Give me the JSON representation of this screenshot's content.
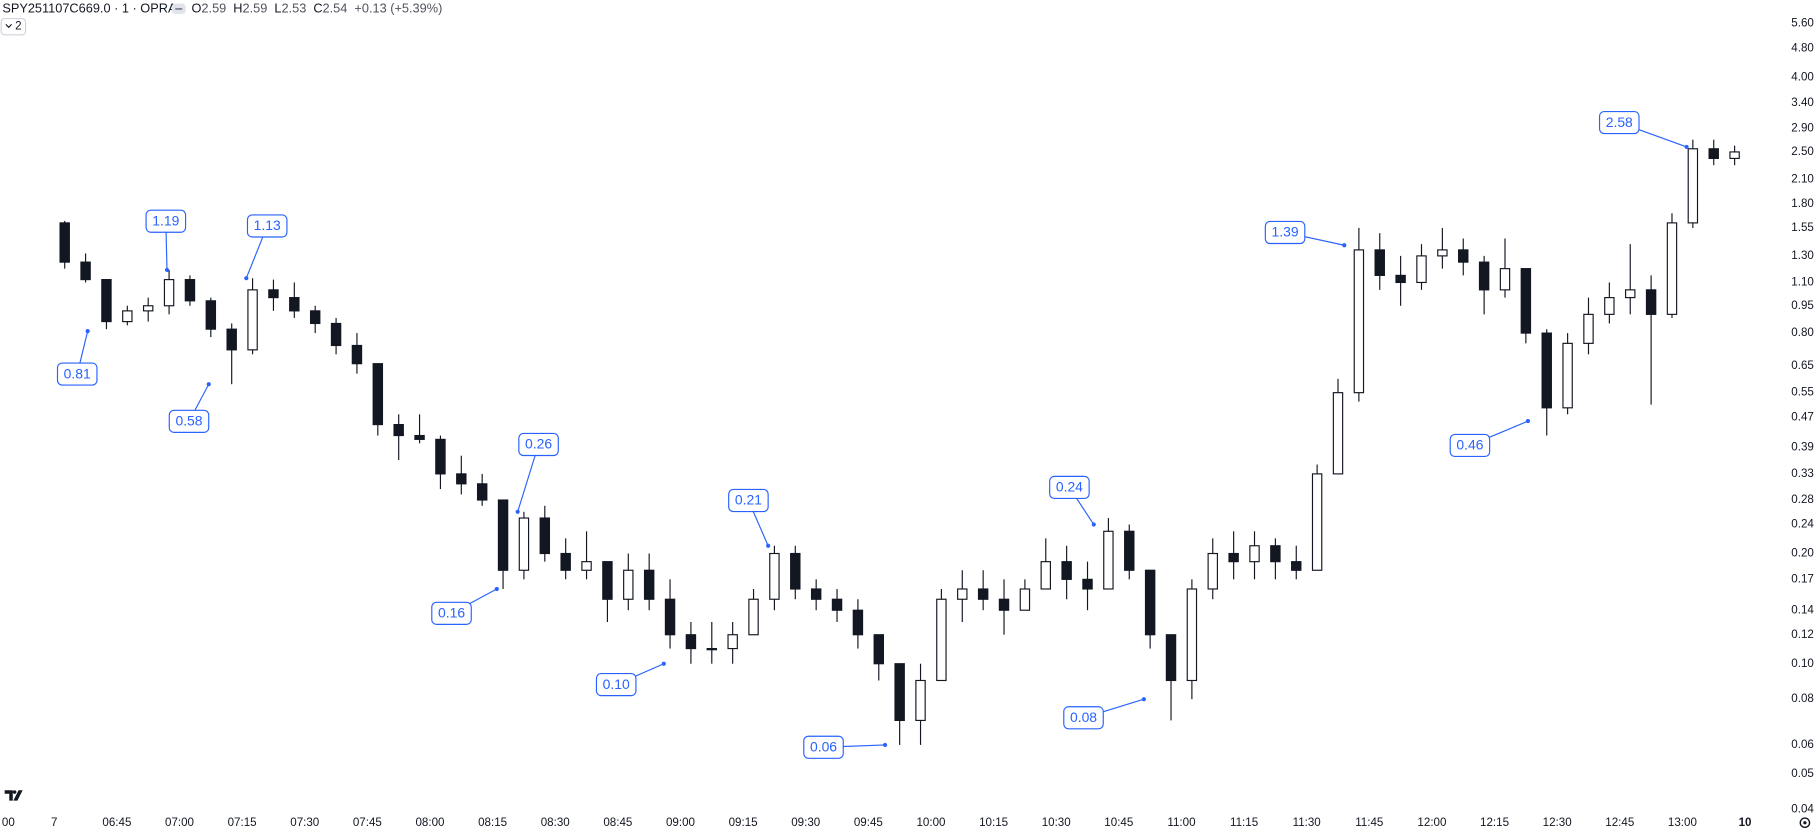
{
  "header": {
    "symbol": "SPY251107C669.0 · 1 · OPRA",
    "ohlc": [
      {
        "key": "O",
        "value": "2.59"
      },
      {
        "key": "H",
        "value": "2.59"
      },
      {
        "key": "L",
        "value": "2.53"
      },
      {
        "key": "C",
        "value": "2.54"
      }
    ],
    "change": "+0.13 (+5.39%)",
    "indicator_count": "2"
  },
  "chart_data": {
    "type": "candlestick",
    "scale": "log",
    "grid": false,
    "color_up": "#ffffff",
    "color_down": "#131722",
    "color_edge": "#131722",
    "x": [
      "06:30",
      "06:35",
      "06:40",
      "06:45",
      "06:50",
      "06:55",
      "07:00",
      "07:05",
      "07:10",
      "07:15",
      "07:20",
      "07:25",
      "07:30",
      "07:35",
      "07:40",
      "07:45",
      "07:50",
      "07:55",
      "08:00",
      "08:05",
      "08:10",
      "08:15",
      "08:20",
      "08:25",
      "08:30",
      "08:35",
      "08:40",
      "08:45",
      "08:50",
      "08:55",
      "09:00",
      "09:05",
      "09:10",
      "09:15",
      "09:20",
      "09:25",
      "09:30",
      "09:35",
      "09:40",
      "09:45",
      "09:50",
      "09:55",
      "10:00",
      "10:05",
      "10:10",
      "10:15",
      "10:20",
      "10:25",
      "10:30",
      "10:35",
      "10:40",
      "10:45",
      "10:50",
      "10:55",
      "11:00",
      "11:05",
      "11:10",
      "11:15",
      "11:20",
      "11:25",
      "11:30",
      "11:35",
      "11:40",
      "11:45",
      "11:50",
      "11:55",
      "12:00",
      "12:05",
      "12:10",
      "12:15",
      "12:20",
      "12:25",
      "12:30",
      "12:35",
      "12:40",
      "12:45",
      "12:50",
      "12:55",
      "13:00",
      "13:05",
      "13:10"
    ],
    "open": [
      1.6,
      1.25,
      1.12,
      0.86,
      0.92,
      0.95,
      1.12,
      0.98,
      0.82,
      0.72,
      1.05,
      1.0,
      0.92,
      0.85,
      0.74,
      0.66,
      0.45,
      0.42,
      0.41,
      0.33,
      0.31,
      0.28,
      0.18,
      0.25,
      0.2,
      0.18,
      0.19,
      0.15,
      0.18,
      0.15,
      0.12,
      0.11,
      0.11,
      0.12,
      0.15,
      0.2,
      0.16,
      0.15,
      0.14,
      0.12,
      0.1,
      0.07,
      0.09,
      0.15,
      0.16,
      0.15,
      0.14,
      0.16,
      0.19,
      0.17,
      0.16,
      0.23,
      0.18,
      0.12,
      0.09,
      0.16,
      0.2,
      0.19,
      0.21,
      0.19,
      0.18,
      0.33,
      0.55,
      1.35,
      1.15,
      1.1,
      1.3,
      1.35,
      1.25,
      1.05,
      1.2,
      0.8,
      0.5,
      0.75,
      0.9,
      1.0,
      1.05,
      0.9,
      1.6,
      2.55,
      2.4
    ],
    "high": [
      1.62,
      1.32,
      1.12,
      0.95,
      1.0,
      1.19,
      1.15,
      1.0,
      0.85,
      1.13,
      1.12,
      1.1,
      0.95,
      0.88,
      0.8,
      0.66,
      0.48,
      0.48,
      0.42,
      0.37,
      0.33,
      0.28,
      0.26,
      0.27,
      0.22,
      0.23,
      0.19,
      0.2,
      0.2,
      0.17,
      0.13,
      0.13,
      0.13,
      0.16,
      0.21,
      0.21,
      0.17,
      0.16,
      0.15,
      0.12,
      0.1,
      0.1,
      0.16,
      0.18,
      0.18,
      0.17,
      0.17,
      0.22,
      0.21,
      0.19,
      0.25,
      0.24,
      0.18,
      0.12,
      0.17,
      0.22,
      0.23,
      0.23,
      0.22,
      0.21,
      0.35,
      0.6,
      1.55,
      1.5,
      1.3,
      1.4,
      1.55,
      1.45,
      1.3,
      1.45,
      1.2,
      0.82,
      0.8,
      1.0,
      1.1,
      1.4,
      1.15,
      1.7,
      2.7,
      2.7,
      2.6
    ],
    "low": [
      1.2,
      1.1,
      0.82,
      0.84,
      0.86,
      0.9,
      0.95,
      0.78,
      0.58,
      0.7,
      0.92,
      0.88,
      0.8,
      0.7,
      0.62,
      0.42,
      0.36,
      0.4,
      0.3,
      0.29,
      0.27,
      0.16,
      0.17,
      0.19,
      0.17,
      0.17,
      0.13,
      0.14,
      0.14,
      0.11,
      0.1,
      0.1,
      0.1,
      0.12,
      0.14,
      0.15,
      0.14,
      0.13,
      0.11,
      0.09,
      0.06,
      0.06,
      0.09,
      0.13,
      0.14,
      0.12,
      0.14,
      0.16,
      0.15,
      0.14,
      0.16,
      0.17,
      0.11,
      0.07,
      0.08,
      0.15,
      0.17,
      0.17,
      0.17,
      0.17,
      0.18,
      0.33,
      0.52,
      1.05,
      0.95,
      1.05,
      1.2,
      1.15,
      0.9,
      1.0,
      0.75,
      0.42,
      0.48,
      0.7,
      0.85,
      0.9,
      0.51,
      0.88,
      1.55,
      2.3,
      2.3
    ],
    "close": [
      1.25,
      1.12,
      0.86,
      0.92,
      0.95,
      1.12,
      0.98,
      0.82,
      0.72,
      1.05,
      1.0,
      0.92,
      0.85,
      0.74,
      0.66,
      0.45,
      0.42,
      0.41,
      0.33,
      0.31,
      0.28,
      0.18,
      0.25,
      0.2,
      0.18,
      0.19,
      0.15,
      0.18,
      0.15,
      0.12,
      0.11,
      0.11,
      0.12,
      0.15,
      0.2,
      0.16,
      0.15,
      0.14,
      0.12,
      0.1,
      0.07,
      0.09,
      0.15,
      0.16,
      0.15,
      0.14,
      0.16,
      0.19,
      0.17,
      0.16,
      0.23,
      0.18,
      0.12,
      0.09,
      0.16,
      0.2,
      0.19,
      0.21,
      0.19,
      0.18,
      0.33,
      0.55,
      1.35,
      1.15,
      1.1,
      1.3,
      1.35,
      1.25,
      1.05,
      1.2,
      0.8,
      0.5,
      0.75,
      0.9,
      1.0,
      1.05,
      0.9,
      1.6,
      2.55,
      2.4,
      2.5
    ],
    "ylim": [
      0.039,
      6.5
    ],
    "yticks": [
      {
        "value": 5.6,
        "label": "5.60"
      },
      {
        "value": 4.8,
        "label": "4.80"
      },
      {
        "value": 4,
        "label": "4.00"
      },
      {
        "value": 3.4,
        "label": "3.40"
      },
      {
        "value": 2.9,
        "label": "2.90"
      },
      {
        "value": 2.5,
        "label": "2.50"
      },
      {
        "value": 2.1,
        "label": "2.10"
      },
      {
        "value": 1.8,
        "label": "1.80"
      },
      1.55,
      {
        "value": 1.3,
        "label": "1.30"
      },
      {
        "value": 1.1,
        "label": "1.10"
      },
      0.95,
      {
        "value": 0.8,
        "label": "0.80"
      },
      0.65,
      0.55,
      0.47,
      0.39,
      0.33,
      0.28,
      0.24,
      {
        "value": 0.2,
        "label": "0.20"
      },
      0.17,
      0.14,
      0.12,
      {
        "value": 0.1,
        "label": "0.10"
      },
      0.08,
      0.06,
      0.05,
      0.04
    ],
    "xlim": [
      "06:17",
      "13:21"
    ],
    "xticks": [
      {
        "value": "06:19",
        "label": "00"
      },
      {
        "value": "06:30",
        "label": "7"
      },
      "06:45",
      "07:00",
      "07:15",
      "07:30",
      "07:45",
      "08:00",
      "08:15",
      "08:30",
      "08:45",
      "09:00",
      "09:15",
      "09:30",
      "09:45",
      "10:00",
      "10:15",
      "10:30",
      "10:45",
      "11:00",
      "11:15",
      "11:30",
      "11:45",
      "12:00",
      "12:15",
      "12:30",
      "12:45",
      "13:00",
      {
        "value": "13:15",
        "label": "10"
      }
    ],
    "annotation_color": "#2962ff",
    "annotations": {
      "x": [
        "06:57",
        "07:16",
        "06:38",
        "07:07",
        "08:21",
        "08:16",
        "08:56",
        "09:21",
        "09:49",
        "10:39",
        "10:51",
        "11:39",
        "12:23",
        "13:01"
      ],
      "values": [
        1.19,
        1.13,
        0.81,
        0.58,
        0.26,
        0.16,
        0.1,
        0.21,
        0.06,
        0.24,
        0.08,
        1.39,
        0.46,
        2.58
      ],
      "value_labels": [
        "1.19",
        "1.13",
        "0.81",
        "0.58",
        "0.26",
        "0.16",
        "0.10",
        "0.21",
        "0.06",
        "0.24",
        "0.08",
        "1.39",
        "0.46",
        "2.58"
      ]
    }
  }
}
